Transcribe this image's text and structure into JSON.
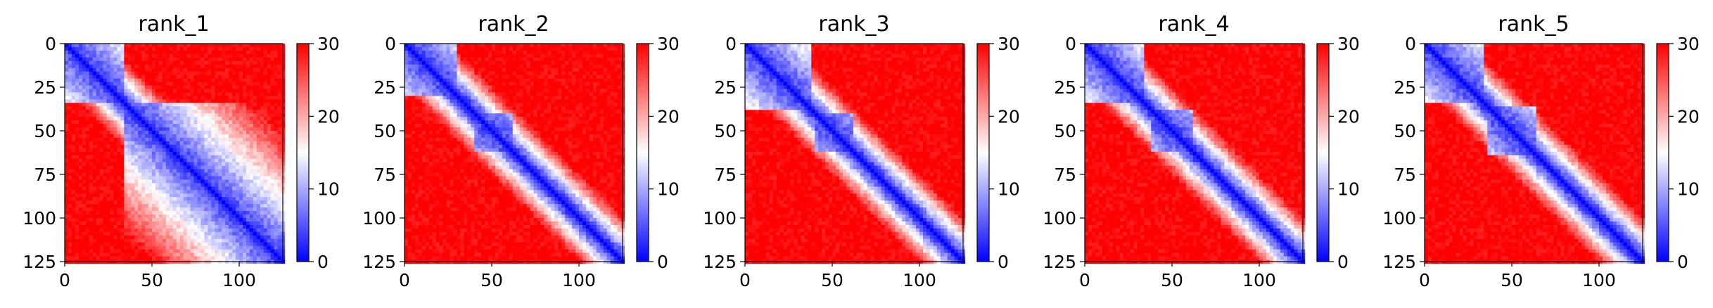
{
  "chart_data": [
    {
      "type": "heatmap",
      "title": "rank_1",
      "x_ticks": [
        0,
        50,
        100
      ],
      "y_ticks": [
        0,
        25,
        50,
        75,
        100,
        125
      ],
      "xlim": [
        0,
        125
      ],
      "ylim": [
        0,
        125
      ],
      "colorbar": {
        "ticks": [
          0,
          10,
          20,
          30
        ],
        "range": [
          0,
          30
        ],
        "colors": [
          "#0000ff",
          "#ffffff",
          "#ff0000"
        ]
      },
      "domains": [
        {
          "start": 0,
          "end": 34
        },
        {
          "start": 34,
          "end": 125
        }
      ]
    },
    {
      "type": "heatmap",
      "title": "rank_2",
      "x_ticks": [
        0,
        50,
        100
      ],
      "y_ticks": [
        0,
        25,
        50,
        75,
        100,
        125
      ],
      "xlim": [
        0,
        125
      ],
      "ylim": [
        0,
        125
      ],
      "colorbar": {
        "ticks": [
          0,
          10,
          20,
          30
        ],
        "range": [
          0,
          30
        ],
        "colors": [
          "#0000ff",
          "#ffffff",
          "#ff0000"
        ]
      },
      "domains": [
        {
          "start": 0,
          "end": 30
        },
        {
          "start": 40,
          "end": 62
        }
      ]
    },
    {
      "type": "heatmap",
      "title": "rank_3",
      "x_ticks": [
        0,
        50,
        100
      ],
      "y_ticks": [
        0,
        25,
        50,
        75,
        100,
        125
      ],
      "xlim": [
        0,
        125
      ],
      "ylim": [
        0,
        125
      ],
      "colorbar": {
        "ticks": [
          0,
          10,
          20,
          30
        ],
        "range": [
          0,
          30
        ],
        "colors": [
          "#0000ff",
          "#ffffff",
          "#ff0000"
        ]
      },
      "domains": [
        {
          "start": 0,
          "end": 38
        },
        {
          "start": 40,
          "end": 62
        }
      ]
    },
    {
      "type": "heatmap",
      "title": "rank_4",
      "x_ticks": [
        0,
        50,
        100
      ],
      "y_ticks": [
        0,
        25,
        50,
        75,
        100,
        125
      ],
      "xlim": [
        0,
        125
      ],
      "ylim": [
        0,
        125
      ],
      "colorbar": {
        "ticks": [
          0,
          10,
          20,
          30
        ],
        "range": [
          0,
          30
        ],
        "colors": [
          "#0000ff",
          "#ffffff",
          "#ff0000"
        ]
      },
      "domains": [
        {
          "start": 0,
          "end": 34
        },
        {
          "start": 38,
          "end": 62
        }
      ]
    },
    {
      "type": "heatmap",
      "title": "rank_5",
      "x_ticks": [
        0,
        50,
        100
      ],
      "y_ticks": [
        0,
        25,
        50,
        75,
        100,
        125
      ],
      "xlim": [
        0,
        125
      ],
      "ylim": [
        0,
        125
      ],
      "colorbar": {
        "ticks": [
          0,
          10,
          20,
          30
        ],
        "range": [
          0,
          30
        ],
        "colors": [
          "#0000ff",
          "#ffffff",
          "#ff0000"
        ]
      },
      "domains": [
        {
          "start": 0,
          "end": 34
        },
        {
          "start": 36,
          "end": 64
        }
      ]
    }
  ]
}
